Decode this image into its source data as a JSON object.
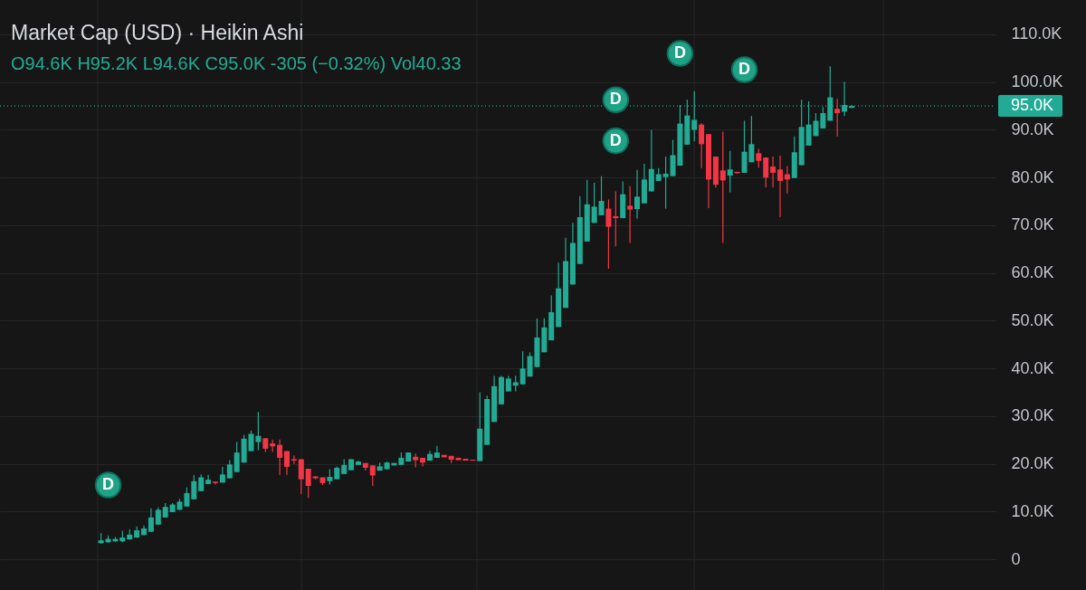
{
  "chart_data": {
    "type": "candlestick",
    "title": "Market Cap (USD) · Heikin Ashi",
    "subtitle": "O94.6K H95.2K L94.6K C95.0K -305 (−0.32%) Vol40.33",
    "categories": [
      null,
      null,
      null,
      null,
      null,
      null,
      null,
      null,
      null,
      null,
      null,
      null,
      null,
      null,
      null,
      null,
      null,
      null,
      null,
      null,
      null,
      null,
      null,
      null,
      null,
      null,
      null,
      null,
      null,
      null,
      null,
      null,
      null,
      null,
      null,
      null,
      null,
      null,
      null,
      null,
      null,
      null,
      null,
      null,
      null,
      null,
      null,
      null,
      null,
      null,
      null,
      null,
      null,
      null,
      null,
      null,
      null,
      null,
      null,
      null,
      null,
      null,
      null,
      null,
      null,
      null,
      null,
      null,
      null,
      null,
      null,
      null,
      null,
      null,
      null,
      null,
      null,
      null,
      null,
      null,
      null,
      null,
      null,
      null,
      null,
      null,
      null,
      null,
      null,
      null,
      null,
      null,
      null,
      null,
      null,
      null,
      null,
      null,
      null,
      null,
      null,
      null,
      null,
      null,
      null,
      null,
      null,
      null,
      null,
      null,
      null,
      null,
      null,
      null,
      null,
      null,
      null,
      null,
      null,
      null,
      null,
      null,
      null,
      null,
      null,
      null,
      null,
      null,
      null,
      null,
      null,
      null,
      null,
      null,
      null,
      null,
      null,
      null
    ],
    "ohlc": [
      null,
      null,
      null,
      null,
      null,
      null,
      null,
      null,
      null,
      null,
      null,
      null,
      null,
      [
        3400,
        5500,
        3300,
        4000
      ],
      [
        3600,
        5000,
        3500,
        4300
      ],
      [
        3800,
        4700,
        3700,
        4300
      ],
      [
        3800,
        6000,
        3600,
        4600
      ],
      [
        4200,
        6300,
        4100,
        5200
      ],
      [
        4600,
        6900,
        4500,
        6100
      ],
      [
        5100,
        7100,
        5100,
        6500
      ],
      [
        5800,
        10700,
        5800,
        8800
      ],
      [
        7300,
        10900,
        7300,
        10400
      ],
      [
        8800,
        11800,
        8800,
        11000
      ],
      [
        9900,
        11800,
        9900,
        11500
      ],
      [
        10400,
        12700,
        10400,
        12100
      ],
      [
        11100,
        15100,
        11100,
        13900
      ],
      [
        12600,
        17700,
        12600,
        16400
      ],
      [
        14300,
        17800,
        14300,
        17200
      ],
      [
        15800,
        17700,
        15800,
        16700
      ],
      [
        16300,
        16300,
        15700,
        16000
      ],
      [
        16100,
        19400,
        16100,
        17800
      ],
      [
        17000,
        20800,
        17000,
        19900
      ],
      [
        18300,
        24600,
        18300,
        22400
      ],
      [
        20300,
        26100,
        20300,
        25300
      ],
      [
        22700,
        27000,
        22700,
        26300
      ],
      [
        24600,
        30900,
        22900,
        25900
      ],
      [
        25400,
        25400,
        22500,
        23200
      ],
      [
        24300,
        25100,
        22500,
        23700
      ],
      [
        24000,
        25100,
        17700,
        21300
      ],
      [
        22700,
        22700,
        17700,
        19400
      ],
      [
        21000,
        21800,
        20000,
        20700
      ],
      [
        21000,
        21000,
        13700,
        16800
      ],
      [
        19000,
        19000,
        12900,
        15400
      ],
      [
        17400,
        17400,
        16800,
        17000
      ],
      [
        17200,
        17200,
        15600,
        16000
      ],
      [
        16400,
        18900,
        15700,
        17300
      ],
      [
        16800,
        19500,
        16800,
        19200
      ],
      [
        17900,
        21000,
        17900,
        19800
      ],
      [
        18700,
        21000,
        18700,
        21000
      ],
      [
        19800,
        20700,
        19800,
        20500
      ],
      [
        20200,
        20200,
        18600,
        19200
      ],
      [
        19700,
        19700,
        15400,
        17600
      ],
      [
        18600,
        20300,
        18600,
        19500
      ],
      [
        18900,
        20500,
        18900,
        20300
      ],
      [
        19700,
        20200,
        19700,
        20200
      ],
      [
        19800,
        22400,
        19800,
        21300
      ],
      [
        20500,
        22400,
        20500,
        22400
      ],
      [
        21500,
        22200,
        19300,
        20800
      ],
      [
        21300,
        21300,
        19500,
        20300
      ],
      [
        20700,
        22700,
        20700,
        22100
      ],
      [
        21300,
        23800,
        21300,
        22400
      ],
      [
        21900,
        21900,
        21400,
        21400
      ],
      [
        21700,
        21700,
        20200,
        20900
      ],
      [
        21300,
        21300,
        20800,
        20800
      ],
      [
        21100,
        21100,
        20700,
        20700
      ],
      [
        20900,
        20900,
        20700,
        20700
      ],
      [
        20600,
        35000,
        20600,
        27400
      ],
      [
        24000,
        34300,
        24000,
        33600
      ],
      [
        28800,
        38500,
        28800,
        36300
      ],
      [
        32500,
        38500,
        32500,
        38200
      ],
      [
        35200,
        38500,
        35200,
        37900
      ],
      [
        36400,
        38500,
        35200,
        37100
      ],
      [
        36700,
        43600,
        36700,
        40000
      ],
      [
        38300,
        43400,
        38300,
        42600
      ],
      [
        40300,
        50500,
        40300,
        46500
      ],
      [
        43400,
        50500,
        43400,
        48600
      ],
      [
        45900,
        55300,
        45900,
        51800
      ],
      [
        48700,
        62200,
        48700,
        56800
      ],
      [
        52700,
        67400,
        52700,
        62500
      ],
      [
        57600,
        70500,
        57600,
        66300
      ],
      [
        61900,
        76100,
        61900,
        71700
      ],
      [
        66600,
        79500,
        66600,
        74400
      ],
      [
        70500,
        78900,
        70500,
        73900
      ],
      [
        72100,
        80300,
        72100,
        75100
      ],
      [
        73500,
        75400,
        60900,
        69700
      ],
      [
        71900,
        77100,
        65600,
        71500
      ],
      [
        71500,
        79200,
        71500,
        76500
      ],
      [
        74100,
        78200,
        66300,
        73300
      ],
      [
        73400,
        81600,
        71400,
        76000
      ],
      [
        74600,
        82900,
        74600,
        79600
      ],
      [
        77100,
        90000,
        77100,
        81800
      ],
      [
        79300,
        82000,
        79300,
        80700
      ],
      [
        80100,
        84400,
        73500,
        80800
      ],
      [
        80300,
        87900,
        80300,
        84700
      ],
      [
        82500,
        95200,
        82500,
        91300
      ],
      [
        86900,
        96300,
        86900,
        93000
      ],
      [
        90000,
        98100,
        87600,
        92100
      ],
      [
        91100,
        91400,
        82000,
        87000
      ],
      [
        89100,
        89100,
        73600,
        79600
      ],
      [
        84400,
        84400,
        77900,
        78500
      ],
      [
        81500,
        89600,
        66300,
        79400
      ],
      [
        80400,
        85600,
        76900,
        81700
      ],
      [
        81200,
        81200,
        80900,
        80900
      ],
      [
        81000,
        91900,
        81000,
        85400
      ],
      [
        83200,
        92900,
        83200,
        87000
      ],
      [
        85100,
        86000,
        82100,
        83500
      ],
      [
        84200,
        84200,
        77900,
        80000
      ],
      [
        82300,
        84400,
        77900,
        81000
      ],
      [
        81700,
        84600,
        71700,
        79300
      ],
      [
        80700,
        82400,
        76700,
        79600
      ],
      [
        79900,
        88600,
        79900,
        85300
      ],
      [
        82600,
        96300,
        82600,
        90600
      ],
      [
        86700,
        96000,
        86700,
        91100
      ],
      [
        88700,
        93500,
        88700,
        91900
      ],
      [
        90300,
        94800,
        90300,
        93500
      ],
      [
        91900,
        103300,
        91900,
        96800
      ],
      [
        94400,
        96500,
        88600,
        93500
      ],
      [
        93800,
        100100,
        92900,
        95200
      ],
      [
        94600,
        95200,
        94600,
        95000
      ],
      null,
      null,
      null,
      null,
      null,
      null,
      null,
      null,
      null,
      null,
      null,
      null,
      null,
      null,
      null,
      null,
      null,
      null,
      null
    ],
    "colors": [
      null,
      null,
      null,
      null,
      null,
      null,
      null,
      null,
      null,
      null,
      null,
      null,
      null,
      "#22ab94",
      "#22ab94",
      "#22ab94",
      "#22ab94",
      "#22ab94",
      "#22ab94",
      "#22ab94",
      "#22ab94",
      "#22ab94",
      "#22ab94",
      "#22ab94",
      "#22ab94",
      "#22ab94",
      "#22ab94",
      "#22ab94",
      "#22ab94",
      "#f23645",
      "#22ab94",
      "#22ab94",
      "#22ab94",
      "#22ab94",
      "#22ab94",
      "#22ab94",
      "#f23645",
      "#f23645",
      "#f23645",
      "#f23645",
      "#f23645",
      "#f23645",
      "#f23645",
      "#f23645",
      "#f23645",
      "#22ab94",
      "#22ab94",
      "#22ab94",
      "#22ab94",
      "#22ab94",
      "#f23645",
      "#f23645",
      "#22ab94",
      "#22ab94",
      "#22ab94",
      "#22ab94",
      "#22ab94",
      "#f23645",
      "#f23645",
      "#22ab94",
      "#22ab94",
      "#f23645",
      "#f23645",
      "#f23645",
      "#f23645",
      "#f23645",
      "#22ab94",
      "#22ab94",
      "#22ab94",
      "#22ab94",
      "#22ab94",
      "#22ab94",
      "#22ab94",
      "#22ab94",
      "#22ab94",
      "#22ab94",
      "#22ab94",
      "#22ab94",
      "#22ab94",
      "#22ab94",
      "#22ab94",
      "#22ab94",
      "#22ab94",
      "#22ab94",
      "#f23645",
      "#f23645",
      "#22ab94",
      "#f23645",
      "#22ab94",
      "#22ab94",
      "#22ab94",
      "#22ab94",
      "#22ab94",
      "#22ab94",
      "#22ab94",
      "#22ab94",
      "#22ab94",
      "#f23645",
      "#f23645",
      "#f23645",
      "#f23645",
      "#22ab94",
      "#f23645",
      "#22ab94",
      "#22ab94",
      "#f23645",
      "#f23645",
      "#f23645",
      "#f23645",
      "#f23645",
      "#22ab94",
      "#22ab94",
      "#22ab94",
      "#22ab94",
      "#22ab94",
      "#22ab94",
      "#f23645",
      "#22ab94",
      "#22ab94",
      null,
      null,
      null,
      null,
      null,
      null,
      null,
      null,
      null,
      null,
      null,
      null,
      null,
      null,
      null,
      null,
      null,
      null,
      null
    ],
    "series": [
      {
        "type": "scatter",
        "name": "D",
        "color": "#1fa286",
        "values": [
          null,
          null,
          null,
          null,
          null,
          null,
          null,
          null,
          null,
          null,
          null,
          null,
          null,
          null,
          15600,
          null,
          null,
          null,
          null,
          null,
          null,
          null,
          null,
          null,
          null,
          null,
          null,
          null,
          null,
          null,
          null,
          null,
          null,
          null,
          null,
          null,
          null,
          null,
          null,
          null,
          null,
          null,
          null,
          null,
          null,
          null,
          null,
          null,
          null,
          null,
          null,
          null,
          null,
          null,
          null,
          null,
          null,
          null,
          null,
          null,
          null,
          null,
          null,
          null,
          null,
          null,
          null,
          null,
          null,
          null,
          null,
          null,
          null,
          null,
          null,
          null,
          null,
          null,
          null,
          null,
          null,
          null,
          null,
          null,
          null,
          87700,
          null,
          null,
          null,
          null,
          null,
          null,
          null,
          null,
          106000,
          null,
          null,
          null,
          null,
          null,
          null,
          null,
          null,
          102600,
          null,
          null,
          null,
          null,
          null,
          null,
          null,
          null,
          null,
          null,
          null,
          null,
          null,
          null,
          null,
          null,
          null,
          null,
          null,
          null,
          null,
          null,
          null,
          null,
          null,
          null,
          null,
          null,
          null,
          null,
          null,
          null,
          null,
          null
        ]
      },
      {
        "type": "scatter",
        "name": "D",
        "color": "#1fa286",
        "values": [
          null,
          null,
          null,
          null,
          null,
          null,
          null,
          null,
          null,
          null,
          null,
          null,
          null,
          null,
          null,
          null,
          null,
          null,
          null,
          null,
          null,
          null,
          null,
          null,
          null,
          null,
          null,
          null,
          null,
          null,
          null,
          null,
          null,
          null,
          null,
          null,
          null,
          null,
          null,
          null,
          null,
          null,
          null,
          null,
          null,
          null,
          null,
          null,
          null,
          null,
          null,
          null,
          null,
          null,
          null,
          null,
          null,
          null,
          null,
          null,
          null,
          null,
          null,
          null,
          null,
          null,
          null,
          null,
          null,
          null,
          null,
          null,
          null,
          null,
          null,
          null,
          null,
          null,
          null,
          null,
          null,
          null,
          null,
          null,
          null,
          96300,
          null,
          null,
          null,
          null,
          null,
          null,
          null,
          null,
          null,
          null,
          null,
          null,
          null,
          null,
          null,
          null,
          null,
          null,
          null,
          null,
          null,
          null,
          null,
          null,
          null,
          null,
          null,
          null,
          null,
          null,
          null,
          null,
          null,
          null,
          null,
          null,
          null,
          null,
          null,
          null,
          null,
          null,
          null,
          null,
          null,
          null,
          null,
          null,
          null,
          null,
          null,
          null
        ]
      }
    ],
    "ylim": [
      -6400,
      117200
    ],
    "yticks": [
      0,
      {
        "value": 10000,
        "label": "10.0K"
      },
      {
        "value": 20000,
        "label": "20.0K"
      },
      {
        "value": 30000,
        "label": "30.0K"
      },
      {
        "value": 40000,
        "label": "40.0K"
      },
      {
        "value": 50000,
        "label": "50.0K"
      },
      {
        "value": 60000,
        "label": "60.0K"
      },
      {
        "value": 70000,
        "label": "70.0K"
      },
      {
        "value": 80000,
        "label": "80.0K"
      },
      {
        "value": 90000,
        "label": "90.0K"
      },
      {
        "value": 100000,
        "label": "100.0K"
      },
      {
        "value": 110000,
        "label": "110.0K"
      }
    ],
    "ref_lines": [
      {
        "axis": "y",
        "value": 95000,
        "label": "95.0K",
        "color": "#22ab94",
        "line_style": "dotted"
      }
    ],
    "grid": true,
    "marker": "circle",
    "tick_labels": "y"
  }
}
